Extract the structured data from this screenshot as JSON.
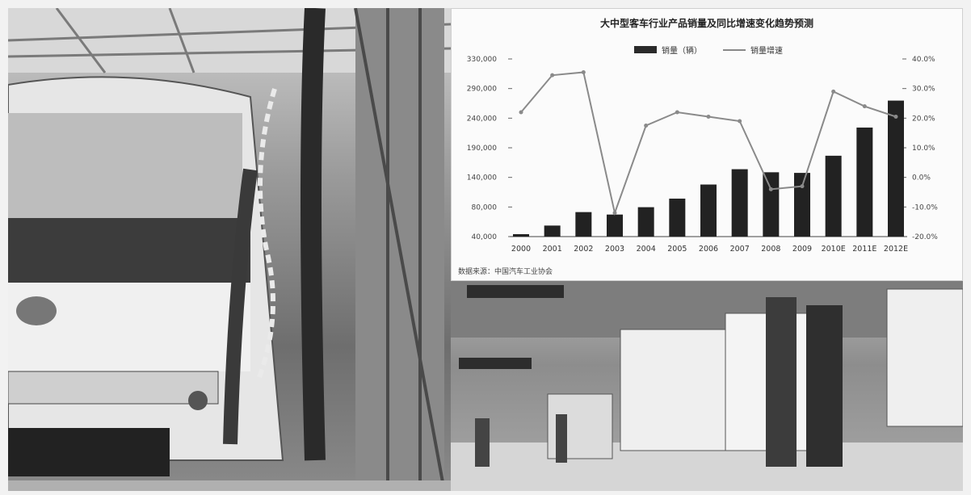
{
  "chart_data": {
    "type": "bar+line",
    "title": "大中型客车行业产品销量及同比增速变化趋势预测",
    "legend": [
      "销量（辆）",
      "销量增速"
    ],
    "categories": [
      "2000",
      "2001",
      "2002",
      "2003",
      "2004",
      "2005",
      "2006",
      "2007",
      "2008",
      "2009",
      "2010E",
      "2011E",
      "2012E"
    ],
    "series": [
      {
        "name": "销量（辆）",
        "axis": "left",
        "values": [
          44000,
          58000,
          80000,
          76000,
          88000,
          102000,
          125000,
          150000,
          145000,
          144000,
          172000,
          218000,
          262000
        ]
      },
      {
        "name": "销量增速",
        "axis": "right",
        "values": [
          22.0,
          34.5,
          35.5,
          -12.0,
          17.5,
          22.0,
          20.5,
          19.0,
          -4.0,
          -3.0,
          29.0,
          24.0,
          20.5
        ]
      }
    ],
    "left_axis": {
      "ticks": [
        "40,000",
        "80,000",
        "140,000",
        "190,000",
        "240,000",
        "290,000",
        "330,000"
      ],
      "ylim": [
        40000,
        330000
      ]
    },
    "right_axis": {
      "ticks": [
        "40.0%",
        "30.0%",
        "20.0%",
        "10.0%",
        "0.0%",
        "-10.0%",
        "-20.0%"
      ],
      "ylim": [
        -20,
        40
      ]
    },
    "legend_placement": "top",
    "source": "数据来源：中国汽车工业协会"
  }
}
